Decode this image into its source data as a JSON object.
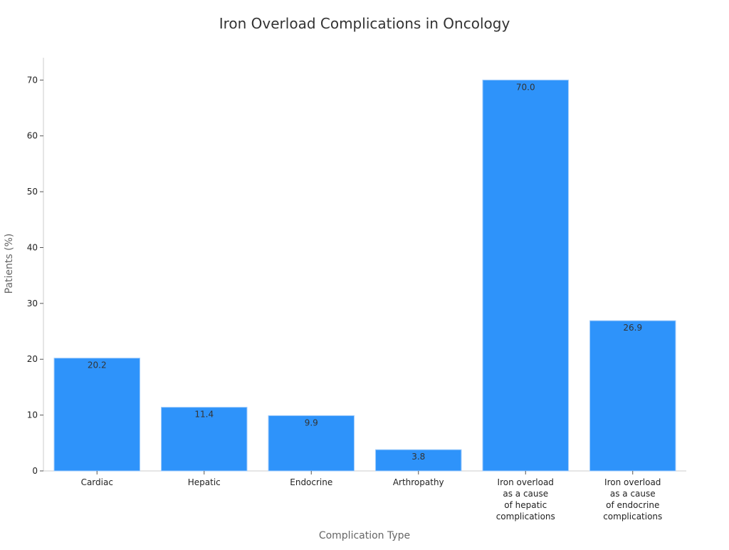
{
  "chart_data": {
    "type": "bar",
    "title": "Iron Overload Complications in Oncology",
    "xlabel": "Complication Type",
    "ylabel": "Patients (%)",
    "categories": [
      "Cardiac",
      "Hepatic",
      "Endocrine",
      "Arthropathy",
      "Iron overload as a cause of hepatic complications",
      "Iron overload as a cause of endocrine complications"
    ],
    "category_lines": [
      [
        "Cardiac"
      ],
      [
        "Hepatic"
      ],
      [
        "Endocrine"
      ],
      [
        "Arthropathy"
      ],
      [
        "Iron overload",
        "as a cause",
        "of hepatic",
        "complications"
      ],
      [
        "Iron overload",
        "as a cause",
        "of endocrine",
        "complications"
      ]
    ],
    "values": [
      20.2,
      11.4,
      9.9,
      3.8,
      70.0,
      26.9
    ],
    "value_labels": [
      "20.2",
      "11.4",
      "9.9",
      "3.8",
      "70.0",
      "26.9"
    ],
    "ylim": [
      0,
      74
    ],
    "yticks": [
      0,
      10,
      20,
      30,
      40,
      50,
      60,
      70
    ],
    "grid": false,
    "legend": "none",
    "colors": {
      "bar": "#2e93fa",
      "bar_edge": "#9cc9fb",
      "axis": "#cccccc",
      "tick_text": "#222222"
    }
  }
}
